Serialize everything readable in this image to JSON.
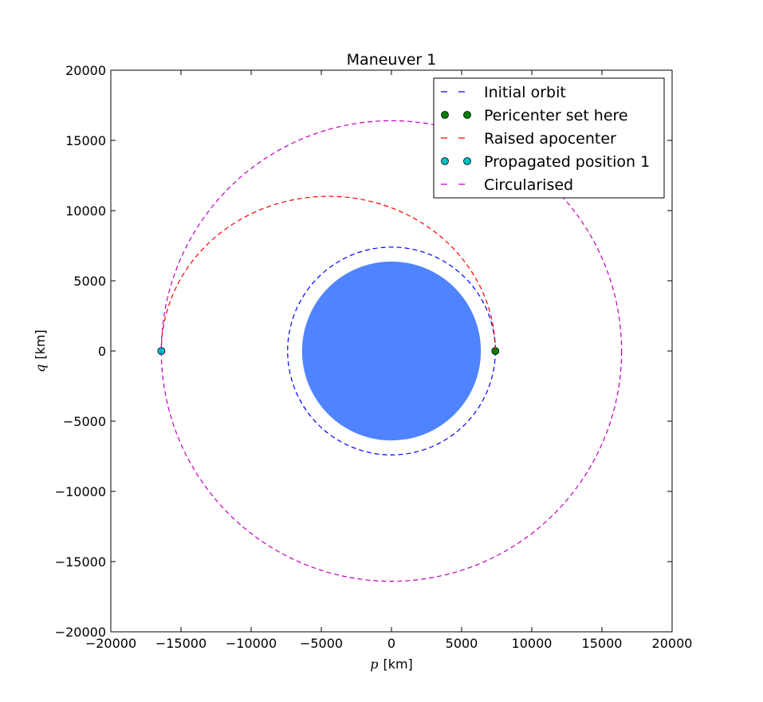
{
  "chart_data": {
    "type": "scatter",
    "title": "Maneuver 1",
    "xlabel": {
      "symbol": "p",
      "unit": "[km]"
    },
    "ylabel": {
      "symbol": "q",
      "unit": "[km]"
    },
    "xlim": [
      -20000,
      20000
    ],
    "ylim": [
      -20000,
      20000
    ],
    "xticks": [
      -20000,
      -15000,
      -10000,
      -5000,
      0,
      5000,
      10000,
      15000,
      20000
    ],
    "yticks": [
      -20000,
      -15000,
      -10000,
      -5000,
      0,
      5000,
      10000,
      15000,
      20000
    ],
    "xtick_labels": [
      "−20000",
      "−15000",
      "−10000",
      "−5000",
      "0",
      "5000",
      "10000",
      "15000",
      "20000"
    ],
    "ytick_labels": [
      "−20000",
      "−15000",
      "−10000",
      "−5000",
      "0",
      "5000",
      "10000",
      "15000",
      "20000"
    ],
    "grid": false,
    "legend_position": "top-right",
    "body": {
      "radius_km": 6371,
      "color": "#4f83ff"
    },
    "series": [
      {
        "name": "Initial orbit",
        "kind": "orbit",
        "semi_major_axis_km": 7400,
        "eccentricity": 0,
        "color": "#0000ff"
      },
      {
        "name": "Pericenter set here",
        "kind": "point",
        "p": 7400,
        "q": 0,
        "color": "#008000"
      },
      {
        "name": "Raised apocenter",
        "kind": "transfer",
        "pericenter_km": 7400,
        "apocenter_km": 16400,
        "color": "#ff0000"
      },
      {
        "name": "Propagated position 1",
        "kind": "point",
        "p": -16400,
        "q": 0,
        "color": "#00bfbf"
      },
      {
        "name": "Circularised",
        "kind": "orbit",
        "semi_major_axis_km": 16400,
        "eccentricity": 0,
        "color": "#bf00bf"
      }
    ]
  }
}
